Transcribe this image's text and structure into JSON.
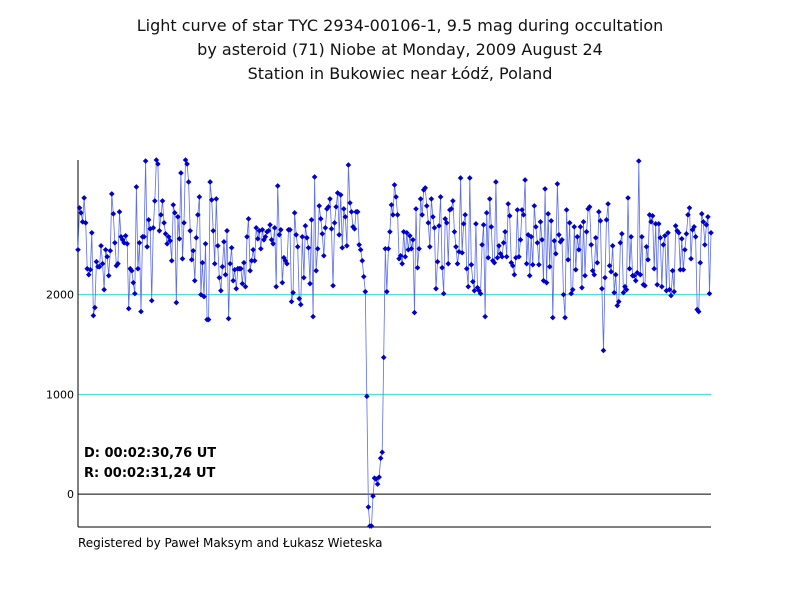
{
  "chart_data": {
    "type": "scatter",
    "title_lines": [
      "Light curve of star TYC 2934-00106-1, 9.5 mag during occultation",
      "by asteroid (71) Niobe at Monday, 2009 August 24",
      "Station in Bukowiec near Łódź, Poland"
    ],
    "xlabel": "",
    "ylabel": "",
    "yticks": [
      0,
      1000,
      2000
    ],
    "ylim": [
      -330,
      3350
    ],
    "grid": "horizontal lines at 1000 and 2000 (cyan), zero line (black)",
    "connected": true,
    "colors": {
      "line": "#5b6ee8",
      "marker": "#0000cc",
      "grid": "#33dddd",
      "axis": "#000000"
    },
    "annotations": [
      "D: 00:02:30,76 UT",
      "R: 00:02:31,24 UT"
    ],
    "footer": "Registered by Paweł Maksym and Łukasz Wieteska",
    "y": [
      2450,
      2870,
      2820,
      2730,
      2970,
      2720,
      2260,
      2200,
      2250,
      2620,
      1790,
      1870,
      2330,
      2280,
      2280,
      2490,
      2310,
      2050,
      2450,
      2380,
      2190,
      2440,
      3010,
      2810,
      2520,
      2290,
      2310,
      2830,
      2580,
      2550,
      2520,
      2590,
      2510,
      1860,
      2260,
      2240,
      2120,
      2010,
      3080,
      2260,
      2520,
      1830,
      2580,
      2580,
      3340,
      2480,
      2750,
      2660,
      1940,
      2670,
      2940,
      3350,
      3310,
      2640,
      2800,
      2940,
      2720,
      2610,
      2510,
      2580,
      2540,
      2340,
      2900,
      2820,
      1920,
      2780,
      2560,
      3220,
      2360,
      2720,
      3350,
      3310,
      3130,
      2640,
      2350,
      2440,
      2140,
      2570,
      2800,
      2980,
      2000,
      2320,
      1980,
      2510,
      1750,
      1750,
      3130,
      2950,
      2640,
      2310,
      2960,
      2490,
      2170,
      2040,
      2280,
      2530,
      2200,
      2640,
      1760,
      2310,
      2470,
      2140,
      2250,
      2060,
      2260,
      2260,
      2260,
      2110,
      2320,
      2080,
      2580,
      2760,
      2240,
      2340,
      2450,
      2340,
      2670,
      2560,
      2640,
      2460,
      2650,
      2550,
      2580,
      2630,
      2640,
      2700,
      2550,
      2510,
      2670,
      2080,
      3090,
      2600,
      2650,
      2120,
      2370,
      2340,
      2310,
      2650,
      2650,
      1930,
      2020,
      2820,
      2600,
      2480,
      1960,
      1900,
      2580,
      2170,
      2690,
      2570,
      2470,
      2110,
      2750,
      1780,
      3180,
      2240,
      2460,
      2890,
      2760,
      2610,
      2390,
      2670,
      2860,
      2880,
      2960,
      2660,
      2090,
      2720,
      2880,
      3020,
      2600,
      3000,
      2470,
      2860,
      2780,
      2490,
      3300,
      2920,
      2830,
      2680,
      2660,
      2830,
      2830,
      2500,
      2450,
      2340,
      2180,
      2030,
      980,
      -130,
      -320,
      -320,
      -20,
      160,
      150,
      100,
      170,
      360,
      420,
      1370,
      2460,
      2030,
      2460,
      2630,
      2900,
      2800,
      3100,
      2980,
      2800,
      2360,
      2390,
      2310,
      2630,
      2380,
      2620,
      2450,
      2590,
      2460,
      2550,
      1820,
      2860,
      2270,
      2460,
      2960,
      2800,
      3050,
      3070,
      2890,
      2720,
      2480,
      2960,
      2780,
      2670,
      2060,
      2330,
      2690,
      2980,
      2270,
      2010,
      2760,
      2720,
      2310,
      2850,
      2860,
      2940,
      2630,
      2480,
      2310,
      2430,
      3170,
      2420,
      2710,
      2800,
      2260,
      2080,
      3170,
      2300,
      2130,
      2040,
      2710,
      2070,
      2040,
      2010,
      2500,
      2700,
      1780,
      2820,
      2370,
      2960,
      2680,
      2340,
      2320,
      3130,
      2370,
      2490,
      2410,
      2380,
      2520,
      2630,
      2380,
      2910,
      2790,
      2320,
      2290,
      2200,
      2370,
      2850,
      2380,
      2550,
      2850,
      2800,
      3150,
      2310,
      2600,
      2190,
      2580,
      2300,
      2890,
      2680,
      2520,
      2300,
      2730,
      2550,
      2140,
      3060,
      2120,
      2810,
      2280,
      2740,
      1770,
      2540,
      2410,
      3110,
      2600,
      2530,
      2550,
      2000,
      1770,
      2850,
      2350,
      2720,
      2010,
      2050,
      2680,
      2250,
      2580,
      2450,
      2680,
      2070,
      2730,
      2190,
      2630,
      2860,
      2880,
      2500,
      2240,
      2200,
      2570,
      2320,
      2830,
      2740,
      2060,
      1440,
      2170,
      2750,
      2910,
      2290,
      2230,
      2490,
      2020,
      2200,
      1890,
      1930,
      2520,
      2610,
      2020,
      2080,
      2050,
      2970,
      2260,
      2580,
      2190,
      2190,
      2140,
      2220,
      3340,
      2200,
      2580,
      2100,
      2090,
      2480,
      2350,
      2800,
      2730,
      2790,
      2260,
      2710,
      2100,
      2710,
      2570,
      2080,
      2500,
      2590,
      2040,
      2620,
      2050,
      1990,
      2240,
      2030,
      2690,
      2640,
      2620,
      2250,
      2560,
      2250,
      2450,
      2610,
      2800,
      2870,
      2360,
      2650,
      2680,
      2580,
      1850,
      1830,
      2320,
      2810,
      2730,
      2500,
      2700,
      2780,
      2010,
      2620
    ]
  }
}
